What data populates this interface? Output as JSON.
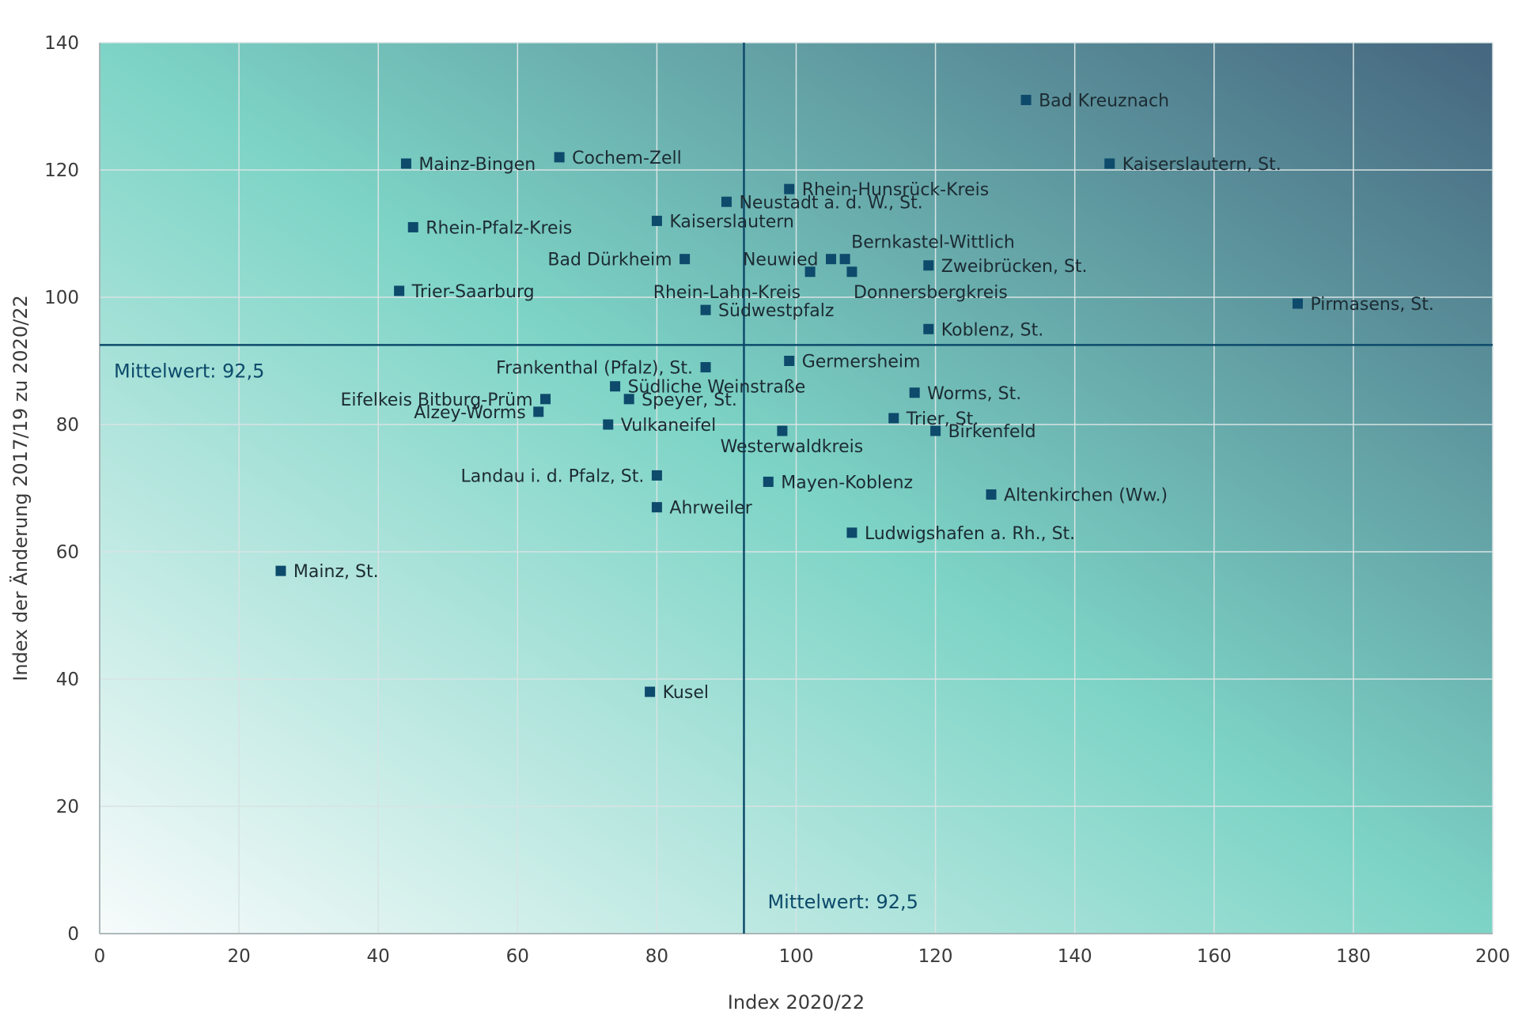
{
  "chart_data": {
    "type": "scatter",
    "xlabel": "Index 2020/22",
    "ylabel": "Index der Änderung 2017/19 zu 2020/22",
    "xlim": [
      0,
      200
    ],
    "ylim": [
      0,
      140
    ],
    "x_ticks": [
      0,
      20,
      40,
      60,
      80,
      100,
      120,
      140,
      160,
      180,
      200
    ],
    "y_ticks": [
      0,
      20,
      40,
      60,
      80,
      100,
      120,
      140
    ],
    "grid": true,
    "mean_lines": [
      {
        "axis": "y",
        "value": 92.5,
        "label": "Mittelwert: 92,5"
      },
      {
        "axis": "x",
        "value": 92.5,
        "label": "Mittelwert: 92,5"
      }
    ],
    "points": [
      {
        "name": "Bad Kreuznach",
        "x": 133,
        "y": 131,
        "anchor": "right"
      },
      {
        "name": "Kaiserslautern, St.",
        "x": 145,
        "y": 121,
        "anchor": "right"
      },
      {
        "name": "Mainz-Bingen",
        "x": 44,
        "y": 121,
        "anchor": "right"
      },
      {
        "name": "Cochem-Zell",
        "x": 66,
        "y": 122,
        "anchor": "right"
      },
      {
        "name": "Rhein-Hunsrück-Kreis",
        "x": 99,
        "y": 117,
        "anchor": "right"
      },
      {
        "name": "Neustadt a. d. W., St.",
        "x": 90,
        "y": 115,
        "anchor": "right"
      },
      {
        "name": "Kaiserslautern",
        "x": 80,
        "y": 112,
        "anchor": "right"
      },
      {
        "name": "Rhein-Pfalz-Kreis",
        "x": 45,
        "y": 111,
        "anchor": "right"
      },
      {
        "name": "Bernkastel-Wittlich",
        "x": 107,
        "y": 106,
        "anchor": "above-right"
      },
      {
        "name": "Neuwied",
        "x": 105,
        "y": 106,
        "anchor": "left"
      },
      {
        "name": "Bad Dürkheim",
        "x": 84,
        "y": 106,
        "anchor": "left"
      },
      {
        "name": "Zweibrücken, St.",
        "x": 119,
        "y": 105,
        "anchor": "right"
      },
      {
        "name": "Rhein-Lahn-Kreis",
        "x": 102,
        "y": 104,
        "anchor": "below-left"
      },
      {
        "name": "Donnersbergkreis",
        "x": 108,
        "y": 104,
        "anchor": "below-right"
      },
      {
        "name": "Trier-Saarburg",
        "x": 43,
        "y": 101,
        "anchor": "right"
      },
      {
        "name": "Pirmasens, St.",
        "x": 172,
        "y": 99,
        "anchor": "right"
      },
      {
        "name": "Südwestpfalz",
        "x": 87,
        "y": 98,
        "anchor": "right"
      },
      {
        "name": "Koblenz, St.",
        "x": 119,
        "y": 95,
        "anchor": "right"
      },
      {
        "name": "Germersheim",
        "x": 99,
        "y": 90,
        "anchor": "right"
      },
      {
        "name": "Frankenthal (Pfalz), St.",
        "x": 87,
        "y": 89,
        "anchor": "left"
      },
      {
        "name": "Südliche Weinstraße",
        "x": 74,
        "y": 86,
        "anchor": "right"
      },
      {
        "name": "Worms, St.",
        "x": 117,
        "y": 85,
        "anchor": "right"
      },
      {
        "name": "Eifelkeis Bitburg-Prüm",
        "x": 64,
        "y": 84,
        "anchor": "left"
      },
      {
        "name": "Speyer, St.",
        "x": 76,
        "y": 84,
        "anchor": "right"
      },
      {
        "name": "Alzey-Worms",
        "x": 63,
        "y": 82,
        "anchor": "left"
      },
      {
        "name": "Trier, St.",
        "x": 114,
        "y": 81,
        "anchor": "right"
      },
      {
        "name": "Vulkaneifel",
        "x": 73,
        "y": 80,
        "anchor": "right"
      },
      {
        "name": "Birkenfeld",
        "x": 120,
        "y": 79,
        "anchor": "right"
      },
      {
        "name": "Westerwaldkreis",
        "x": 98,
        "y": 79,
        "anchor": "below"
      },
      {
        "name": "Landau i. d. Pfalz, St.",
        "x": 80,
        "y": 72,
        "anchor": "left"
      },
      {
        "name": "Mayen-Koblenz",
        "x": 96,
        "y": 71,
        "anchor": "right"
      },
      {
        "name": "Altenkirchen (Ww.)",
        "x": 128,
        "y": 69,
        "anchor": "right"
      },
      {
        "name": "Ahrweiler",
        "x": 80,
        "y": 67,
        "anchor": "right"
      },
      {
        "name": "Ludwigshafen a. Rh., St.",
        "x": 108,
        "y": 63,
        "anchor": "right"
      },
      {
        "name": "Mainz, St.",
        "x": 26,
        "y": 57,
        "anchor": "right"
      },
      {
        "name": "Kusel",
        "x": 79,
        "y": 38,
        "anchor": "right"
      }
    ],
    "colors": {
      "marker": "#0d4a6b",
      "mean_line": "#0d4a6b",
      "grid": "#d8e3e3",
      "gradient_low": "#f7fbfb",
      "gradient_mid": "#7dd4c6",
      "gradient_high": "#45667f"
    }
  }
}
